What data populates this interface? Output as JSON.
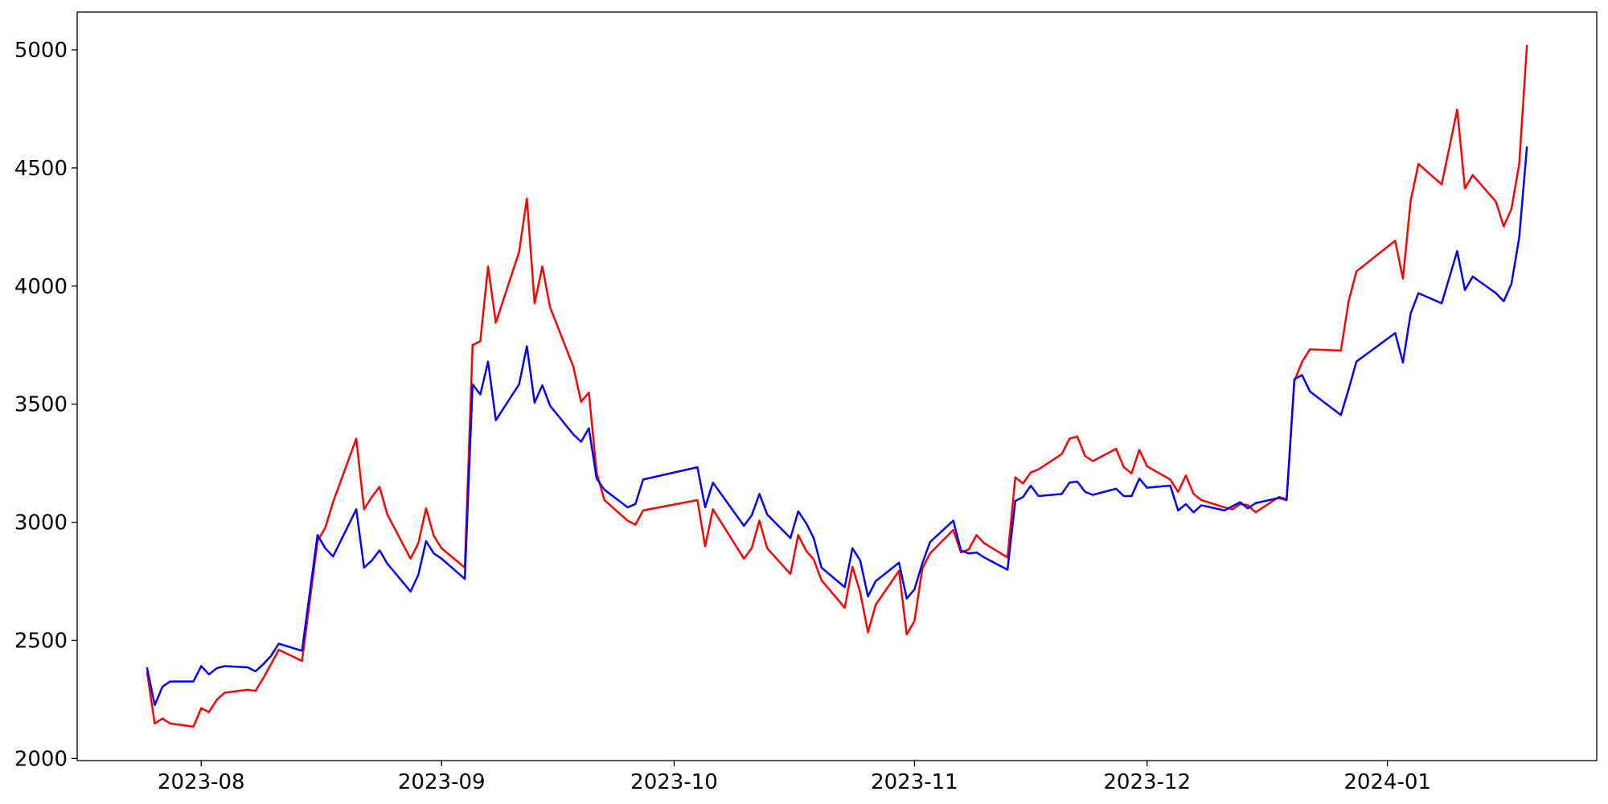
{
  "chart_data": {
    "type": "line",
    "x": [
      "2023-07-25",
      "2023-07-26",
      "2023-07-27",
      "2023-07-28",
      "2023-07-31",
      "2023-08-01",
      "2023-08-02",
      "2023-08-03",
      "2023-08-04",
      "2023-08-07",
      "2023-08-08",
      "2023-08-09",
      "2023-08-10",
      "2023-08-11",
      "2023-08-14",
      "2023-08-16",
      "2023-08-17",
      "2023-08-18",
      "2023-08-21",
      "2023-08-22",
      "2023-08-23",
      "2023-08-24",
      "2023-08-25",
      "2023-08-28",
      "2023-08-29",
      "2023-08-30",
      "2023-08-31",
      "2023-09-01",
      "2023-09-04",
      "2023-09-05",
      "2023-09-06",
      "2023-09-07",
      "2023-09-08",
      "2023-09-11",
      "2023-09-12",
      "2023-09-13",
      "2023-09-14",
      "2023-09-15",
      "2023-09-18",
      "2023-09-19",
      "2023-09-20",
      "2023-09-21",
      "2023-09-22",
      "2023-09-25",
      "2023-09-26",
      "2023-09-27",
      "2023-10-04",
      "2023-10-05",
      "2023-10-06",
      "2023-10-10",
      "2023-10-11",
      "2023-10-12",
      "2023-10-13",
      "2023-10-16",
      "2023-10-17",
      "2023-10-18",
      "2023-10-19",
      "2023-10-20",
      "2023-10-23",
      "2023-10-24",
      "2023-10-25",
      "2023-10-26",
      "2023-10-27",
      "2023-10-30",
      "2023-10-31",
      "2023-11-01",
      "2023-11-02",
      "2023-11-03",
      "2023-11-06",
      "2023-11-07",
      "2023-11-08",
      "2023-11-09",
      "2023-11-10",
      "2023-11-13",
      "2023-11-14",
      "2023-11-15",
      "2023-11-16",
      "2023-11-17",
      "2023-11-20",
      "2023-11-21",
      "2023-11-22",
      "2023-11-23",
      "2023-11-24",
      "2023-11-27",
      "2023-11-28",
      "2023-11-29",
      "2023-11-30",
      "2023-12-01",
      "2023-12-04",
      "2023-12-05",
      "2023-12-06",
      "2023-12-07",
      "2023-12-08",
      "2023-12-11",
      "2023-12-12",
      "2023-12-13",
      "2023-12-14",
      "2023-12-15",
      "2023-12-18",
      "2023-12-19",
      "2023-12-20",
      "2023-12-21",
      "2023-12-22",
      "2023-12-26",
      "2023-12-27",
      "2023-12-28",
      "2024-01-02",
      "2024-01-03",
      "2024-01-04",
      "2024-01-05",
      "2024-01-08",
      "2024-01-10",
      "2024-01-11",
      "2024-01-12",
      "2024-01-15",
      "2024-01-16",
      "2024-01-17",
      "2024-01-18",
      "2024-01-19"
    ],
    "series": [
      {
        "color": "#ff0000",
        "values": [
          2369,
          2148,
          2169,
          2148,
          2135,
          2213,
          2196,
          2248,
          2278,
          2291,
          2286,
          2340,
          2399,
          2460,
          2413,
          2920,
          2977,
          3085,
          3354,
          3055,
          3107,
          3150,
          3033,
          2846,
          2911,
          3059,
          2942,
          2890,
          2808,
          3750,
          3767,
          4083,
          3845,
          4144,
          4370,
          3927,
          4083,
          3910,
          3658,
          3510,
          3549,
          3211,
          3094,
          3007,
          2990,
          3050,
          3094,
          2898,
          3055,
          2846,
          2890,
          3007,
          2890,
          2781,
          2946,
          2881,
          2842,
          2755,
          2638,
          2812,
          2703,
          2534,
          2651,
          2794,
          2525,
          2582,
          2803,
          2868,
          2968,
          2872,
          2885,
          2946,
          2911,
          2851,
          3190,
          3164,
          3211,
          3224,
          3289,
          3354,
          3363,
          3281,
          3259,
          3311,
          3233,
          3207,
          3307,
          3237,
          3181,
          3129,
          3198,
          3120,
          3094,
          3063,
          3055,
          3077,
          3072,
          3042,
          3107,
          3098,
          3597,
          3680,
          3732,
          3727,
          3936,
          4062,
          4192,
          4031,
          4361,
          4517,
          4430,
          4747,
          4413,
          4470,
          4357,
          4253,
          4327,
          4517,
          5021
        ]
      },
      {
        "color": "#0000ff",
        "values": [
          2386,
          2226,
          2304,
          2326,
          2326,
          2391,
          2356,
          2382,
          2391,
          2386,
          2369,
          2399,
          2434,
          2486,
          2456,
          2946,
          2890,
          2855,
          3055,
          2808,
          2838,
          2881,
          2825,
          2707,
          2777,
          2920,
          2868,
          2846,
          2760,
          3584,
          3541,
          3680,
          3432,
          3584,
          3745,
          3506,
          3580,
          3493,
          3372,
          3341,
          3398,
          3185,
          3138,
          3063,
          3077,
          3181,
          3233,
          3063,
          3168,
          2985,
          3029,
          3120,
          3033,
          2933,
          3046,
          2998,
          2933,
          2808,
          2725,
          2890,
          2838,
          2686,
          2751,
          2829,
          2677,
          2716,
          2825,
          2916,
          3007,
          2881,
          2868,
          2872,
          2851,
          2799,
          3090,
          3107,
          3155,
          3111,
          3120,
          3168,
          3172,
          3129,
          3116,
          3142,
          3111,
          3111,
          3185,
          3146,
          3155,
          3050,
          3077,
          3042,
          3072,
          3050,
          3068,
          3085,
          3059,
          3081,
          3103,
          3094,
          3606,
          3623,
          3554,
          3454,
          3563,
          3680,
          3801,
          3676,
          3884,
          3970,
          3927,
          4148,
          3983,
          4040,
          3970,
          3936,
          4010,
          4205,
          4591
        ]
      }
    ],
    "xlim": [
      "2023-07-16",
      "2024-01-28"
    ],
    "xticks": [
      {
        "value": "2023-08-01",
        "label": "2023-08"
      },
      {
        "value": "2023-09-01",
        "label": "2023-09"
      },
      {
        "value": "2023-10-01",
        "label": "2023-10"
      },
      {
        "value": "2023-11-01",
        "label": "2023-11"
      },
      {
        "value": "2023-12-01",
        "label": "2023-12"
      },
      {
        "value": "2024-01-01",
        "label": "2024-01"
      }
    ],
    "ylim": [
      1991,
      5160
    ],
    "yticks": [
      2000,
      2500,
      3000,
      3500,
      4000,
      4500,
      5000
    ],
    "grid": false
  }
}
